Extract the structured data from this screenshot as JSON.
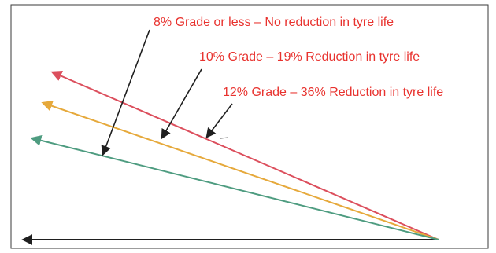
{
  "labels": {
    "grade_8": "8% Grade or less – No reduction in tyre life",
    "grade_10": "10% Grade – 19% Reduction in tyre life",
    "grade_12": "12% Grade – 36% Reduction in tyre life"
  },
  "colors": {
    "label_text": "#e8322e",
    "frame": "#3a3a3a",
    "ground_line": "#1f1f1f",
    "steep_line": "#dc4f5d",
    "medium_line": "#e6a93b",
    "gentle_line": "#4e9c80",
    "pointer": "#1f1f1f"
  },
  "legend_marks": {
    "steep_line": "red",
    "medium_line": "orange",
    "gentle_line": "green"
  }
}
